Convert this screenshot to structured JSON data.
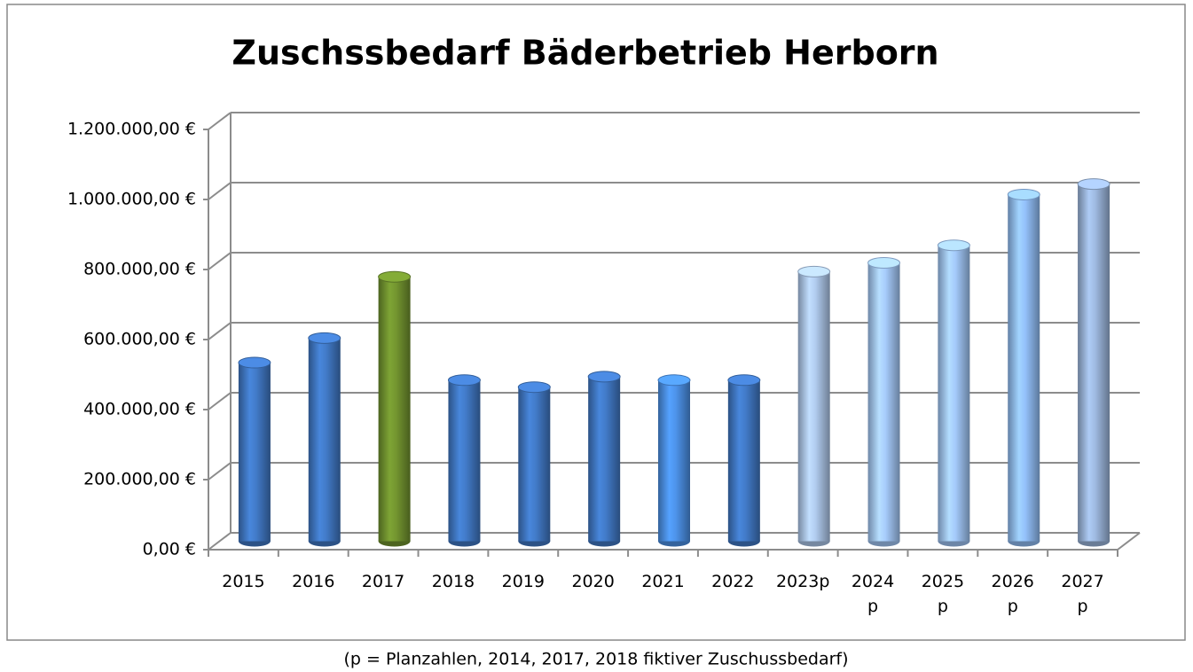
{
  "chart_data": {
    "type": "bar",
    "title": "Zuschssbedarf Bäderbetrieb Herborn",
    "caption": "(p = Planzahlen, 2014, 2017, 2018 fiktiver Zuschussbedarf)",
    "categories": [
      "2015",
      "2016",
      "2017",
      "2018",
      "2019",
      "2020",
      "2021",
      "2022",
      "2023p",
      "2024 p",
      "2025 p",
      "2026 p",
      "2027 p"
    ],
    "values": [
      510000,
      580000,
      755000,
      460000,
      440000,
      470000,
      460000,
      460000,
      770000,
      795000,
      845000,
      990000,
      1020000
    ],
    "colors": [
      "#3f75bf",
      "#3f75bf",
      "#6e8f2e",
      "#3f75bf",
      "#3f75bf",
      "#3f75bf",
      "#4a8de0",
      "#3f75bf",
      "#a9c2e4",
      "#9fc2f0",
      "#9cc0ef",
      "#8db8ef",
      "#97b1d6"
    ],
    "ylim": [
      0,
      1200000
    ],
    "yticks": [
      {
        "value": 0,
        "label": "0,00 €"
      },
      {
        "value": 200000,
        "label": "200.000,00 €"
      },
      {
        "value": 400000,
        "label": "400.000,00 €"
      },
      {
        "value": 600000,
        "label": "600.000,00 €"
      },
      {
        "value": 800000,
        "label": "800.000,00 €"
      },
      {
        "value": 1000000,
        "label": "1.000.000,00 €"
      },
      {
        "value": 1200000,
        "label": "1.200.000,00 €"
      }
    ],
    "grid": true
  }
}
